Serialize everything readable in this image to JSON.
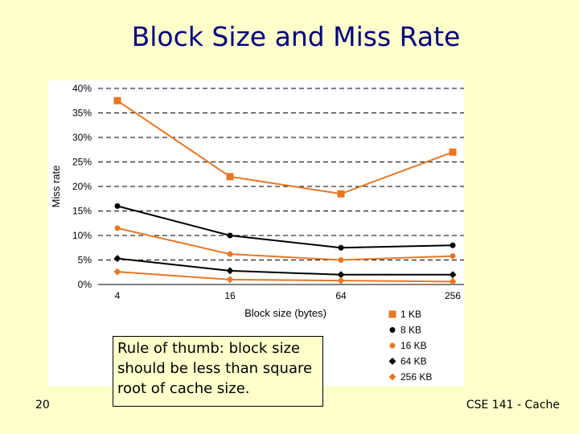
{
  "slide": {
    "title": "Block Size and Miss Rate",
    "note": "Rule of thumb: block size should be less than square root of cache size.",
    "number": "20",
    "footer": "CSE 141 - Cache"
  },
  "colors": {
    "orange": "#e87722",
    "black": "#000000",
    "navy": "#000080",
    "background": "#ffffcc"
  },
  "chart_data": {
    "type": "line",
    "title": "",
    "xlabel": "Block size (bytes)",
    "ylabel": "Miss rate",
    "x": [
      4,
      16,
      64,
      256
    ],
    "x_scale": "log",
    "ylim": [
      0,
      40
    ],
    "y_ticks": [
      "0%",
      "5%",
      "10%",
      "15%",
      "20%",
      "25%",
      "30%",
      "35%",
      "40%"
    ],
    "y_tick_values": [
      0,
      5,
      10,
      15,
      20,
      25,
      30,
      35,
      40
    ],
    "grid": "horizontal dashed",
    "legend_position": "bottom-right",
    "series": [
      {
        "name": "1 KB",
        "values": [
          37.5,
          22.0,
          18.5,
          27.0
        ],
        "color": "#e87722",
        "marker": "square"
      },
      {
        "name": "8 KB",
        "values": [
          16.0,
          10.0,
          7.5,
          8.0
        ],
        "color": "#000000",
        "marker": "circle"
      },
      {
        "name": "16 KB",
        "values": [
          11.5,
          6.2,
          5.0,
          5.8
        ],
        "color": "#e87722",
        "marker": "circle"
      },
      {
        "name": "64 KB",
        "values": [
          5.3,
          2.8,
          2.0,
          2.0
        ],
        "color": "#000000",
        "marker": "diamond"
      },
      {
        "name": "256 KB",
        "values": [
          2.6,
          1.0,
          0.8,
          0.6
        ],
        "color": "#e87722",
        "marker": "diamond"
      }
    ]
  }
}
